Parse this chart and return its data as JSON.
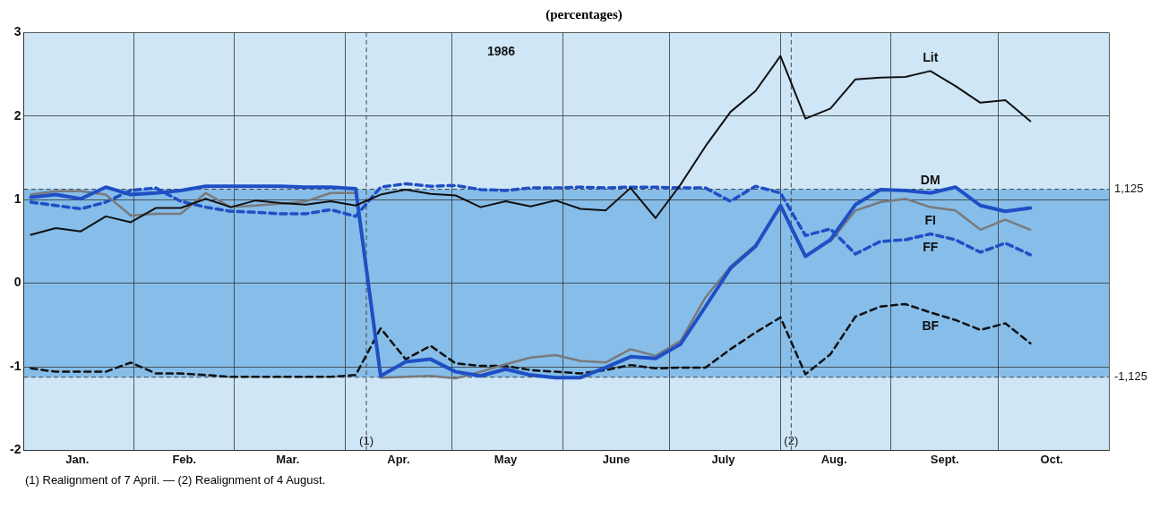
{
  "chart_data": {
    "type": "line",
    "title": "(percentages)",
    "x": [
      "1986-01-03",
      "1986-01-10",
      "1986-01-17",
      "1986-01-24",
      "1986-01-31",
      "1986-02-07",
      "1986-02-14",
      "1986-02-21",
      "1986-02-28",
      "1986-03-07",
      "1986-03-14",
      "1986-03-21",
      "1986-03-28",
      "1986-04-04",
      "1986-04-11",
      "1986-04-18",
      "1986-04-25",
      "1986-05-02",
      "1986-05-09",
      "1986-05-16",
      "1986-05-23",
      "1986-05-30",
      "1986-06-06",
      "1986-06-13",
      "1986-06-20",
      "1986-06-27",
      "1986-07-04",
      "1986-07-11",
      "1986-07-18",
      "1986-07-25",
      "1986-08-01",
      "1986-08-08",
      "1986-08-15",
      "1986-08-22",
      "1986-08-29",
      "1986-09-05",
      "1986-09-12",
      "1986-09-19",
      "1986-09-26",
      "1986-10-03",
      "1986-10-10"
    ],
    "series": [
      {
        "name": "Lit",
        "color": "#111111",
        "values": [
          0.58,
          0.66,
          0.62,
          0.8,
          0.73,
          0.9,
          0.9,
          1.01,
          0.91,
          0.99,
          0.96,
          0.94,
          0.98,
          0.93,
          1.06,
          1.12,
          1.07,
          1.05,
          0.91,
          0.98,
          0.92,
          0.99,
          0.89,
          0.87,
          1.14,
          0.78,
          1.18,
          1.64,
          2.05,
          2.3,
          2.72,
          1.97,
          2.09,
          2.44,
          2.46,
          2.47,
          2.54,
          2.36,
          2.16,
          2.19,
          1.94
        ]
      },
      {
        "name": "DM",
        "color": "#1f4fc4",
        "values": [
          1.03,
          1.06,
          1.01,
          1.15,
          1.06,
          1.08,
          1.11,
          1.16,
          1.16,
          1.16,
          1.16,
          1.15,
          1.15,
          1.13,
          -1.11,
          -0.94,
          -0.91,
          -1.06,
          -1.11,
          -1.03,
          -1.1,
          -1.13,
          -1.13,
          -1.01,
          -0.88,
          -0.9,
          -0.73,
          -0.28,
          0.18,
          0.44,
          0.93,
          0.32,
          0.52,
          0.94,
          1.12,
          1.11,
          1.08,
          1.15,
          0.93,
          0.86,
          0.9
        ]
      },
      {
        "name": "FI",
        "color": "#7a7a7a",
        "values": [
          1.06,
          1.1,
          1.1,
          1.06,
          0.81,
          0.83,
          0.83,
          1.08,
          0.91,
          0.93,
          0.95,
          0.98,
          1.08,
          1.08,
          -1.13,
          -1.12,
          -1.11,
          -1.14,
          -1.06,
          -0.97,
          -0.89,
          -0.86,
          -0.93,
          -0.95,
          -0.79,
          -0.87,
          -0.69,
          -0.17,
          0.2,
          0.46,
          0.9,
          null,
          0.5,
          0.87,
          0.97,
          1.01,
          0.91,
          0.87,
          0.64,
          0.76,
          0.64
        ]
      },
      {
        "name": "FF",
        "color": "#1f4fc4",
        "line_style": "dashed",
        "values": [
          0.97,
          0.93,
          0.89,
          0.97,
          1.11,
          1.14,
          0.98,
          0.91,
          0.86,
          0.85,
          0.83,
          0.83,
          0.88,
          0.8,
          1.15,
          1.19,
          1.16,
          1.17,
          1.12,
          1.11,
          1.14,
          1.14,
          1.15,
          1.14,
          1.15,
          1.15,
          1.14,
          1.14,
          0.98,
          1.16,
          1.08,
          0.57,
          0.65,
          0.35,
          0.5,
          0.52,
          0.59,
          0.52,
          0.37,
          0.48,
          0.34
        ]
      },
      {
        "name": "BF",
        "color": "#111111",
        "line_style": "dashed",
        "values": [
          -1.02,
          -1.06,
          -1.06,
          -1.06,
          -0.95,
          -1.08,
          -1.08,
          -1.1,
          -1.12,
          -1.12,
          -1.12,
          -1.12,
          -1.12,
          -1.1,
          -0.54,
          -0.91,
          -0.75,
          -0.96,
          -0.99,
          -0.99,
          -1.04,
          -1.06,
          -1.08,
          -1.04,
          -0.98,
          -1.02,
          -1.01,
          -1.01,
          -0.79,
          -0.59,
          -0.41,
          -1.09,
          -0.85,
          -0.4,
          -0.28,
          -0.25,
          -0.35,
          -0.44,
          -0.56,
          -0.48,
          -0.72
        ]
      }
    ],
    "xlim": [
      "1986-01-01",
      "1986-11-01"
    ],
    "xticks": [
      {
        "value": "1986-01-01",
        "label": null
      },
      {
        "value": "1986-01-16",
        "label": "Jan."
      },
      {
        "value": "1986-02-01",
        "label": null
      },
      {
        "value": "1986-02-15",
        "label": "Feb."
      },
      {
        "value": "1986-03-01",
        "label": null
      },
      {
        "value": "1986-03-16",
        "label": "Mar."
      },
      {
        "value": "1986-04-01",
        "label": null
      },
      {
        "value": "1986-04-16",
        "label": "Apr."
      },
      {
        "value": "1986-05-01",
        "label": null
      },
      {
        "value": "1986-05-16",
        "label": "May"
      },
      {
        "value": "1986-06-01",
        "label": null
      },
      {
        "value": "1986-06-16",
        "label": "June"
      },
      {
        "value": "1986-07-01",
        "label": null
      },
      {
        "value": "1986-07-16",
        "label": "July"
      },
      {
        "value": "1986-08-01",
        "label": null
      },
      {
        "value": "1986-08-16",
        "label": "Aug."
      },
      {
        "value": "1986-09-01",
        "label": null
      },
      {
        "value": "1986-09-16",
        "label": "Sept."
      },
      {
        "value": "1986-10-01",
        "label": null
      },
      {
        "value": "1986-10-16",
        "label": "Oct."
      },
      {
        "value": "1986-11-01",
        "label": null
      }
    ],
    "ylim": [
      -2,
      3
    ],
    "yticks": [
      -2,
      -1,
      0,
      1,
      2,
      3
    ],
    "grid": true,
    "legend": false,
    "marker": "none",
    "line_style": "solid",
    "bands": [
      {
        "axis": "y",
        "from": -1.125,
        "to": 1.125,
        "color": "#86bde9"
      }
    ],
    "ref_lines": [
      {
        "axis": "y",
        "value": 1.125,
        "label": "1,125",
        "color": "#444444",
        "line_style": "dashed"
      },
      {
        "axis": "y",
        "value": -1.125,
        "label": "-1,125",
        "color": "#444444",
        "line_style": "dashed"
      },
      {
        "axis": "x",
        "value": "1986-04-07",
        "label": "(1)",
        "color": "#444444",
        "line_style": "dashed"
      },
      {
        "axis": "x",
        "value": "1986-08-04",
        "label": "(2)",
        "color": "#444444",
        "line_style": "dashed"
      }
    ],
    "annotations": [
      "1986",
      "(1) Realignment of 7 April. — (2) Realignment of 4 August."
    ]
  }
}
